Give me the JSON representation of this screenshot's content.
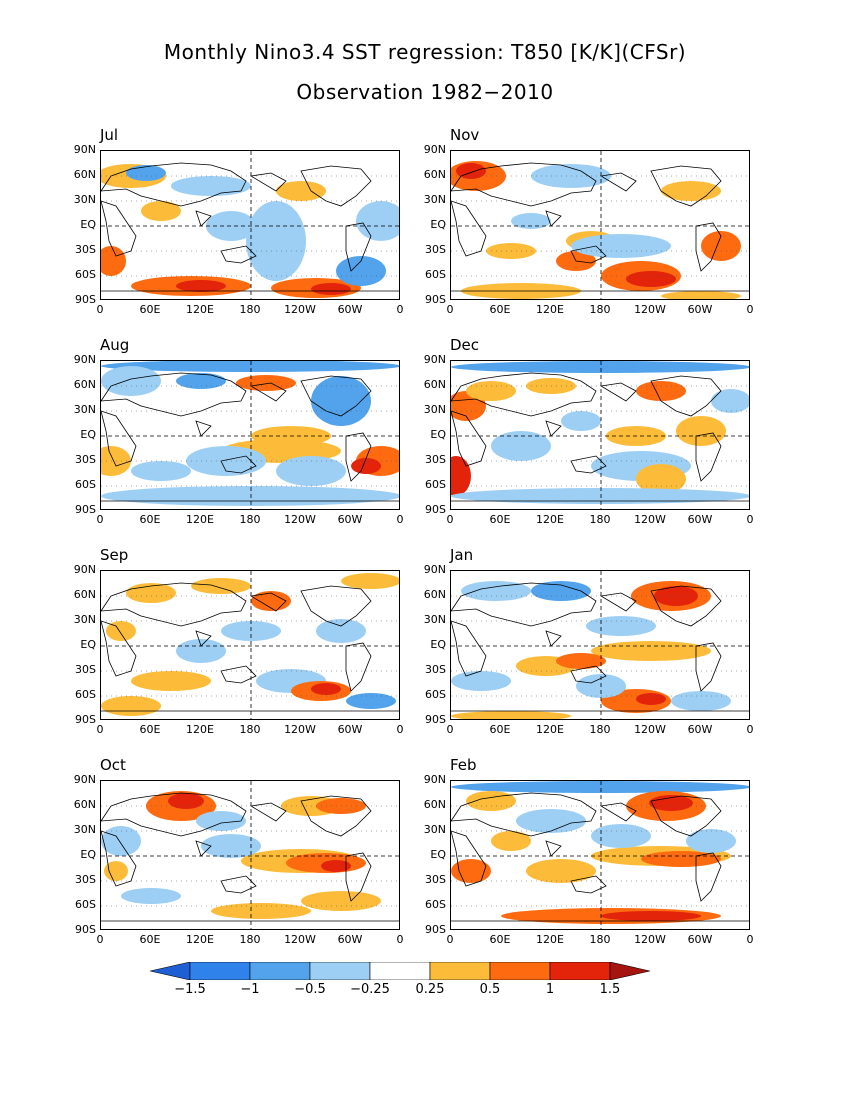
{
  "title_line1": "Monthly Nino3.4 SST regression: T850 [K/K](CFSr)",
  "title_line2": "Observation 1982−2010",
  "lat_labels": [
    "90N",
    "60N",
    "30N",
    "EQ",
    "30S",
    "60S",
    "90S"
  ],
  "lon_labels": [
    "0",
    "60E",
    "120E",
    "180",
    "120W",
    "60W",
    "0"
  ],
  "panels": [
    {
      "month": "Jul"
    },
    {
      "month": "Nov"
    },
    {
      "month": "Aug"
    },
    {
      "month": "Dec"
    },
    {
      "month": "Sep"
    },
    {
      "month": "Jan"
    },
    {
      "month": "Oct"
    },
    {
      "month": "Feb"
    }
  ],
  "colorbar": {
    "levels": [
      "−1.5",
      "−1",
      "−0.5",
      "−0.25",
      "0.25",
      "0.5",
      "1",
      "1.5"
    ],
    "colors": [
      "#1f5fd4",
      "#2f82ea",
      "#52a3ec",
      "#9dcff5",
      "#ffffff",
      "#fcbc3a",
      "#fd6a10",
      "#e4230b",
      "#a5140e"
    ]
  },
  "chart_data": {
    "type": "heatmap",
    "title": "Monthly Nino3.4 SST regression: T850 [K/K](CFSr)",
    "subtitle": "Observation 1982−2010",
    "variable": "T850",
    "units": "K/K",
    "panels": [
      "Jul",
      "Aug",
      "Sep",
      "Oct",
      "Nov",
      "Dec",
      "Jan",
      "Feb"
    ],
    "contour_levels": [
      -1.5,
      -1,
      -0.5,
      -0.25,
      0.25,
      0.5,
      1,
      1.5
    ],
    "lon_range": [
      0,
      360
    ],
    "lat_range": [
      -90,
      90
    ]
  }
}
